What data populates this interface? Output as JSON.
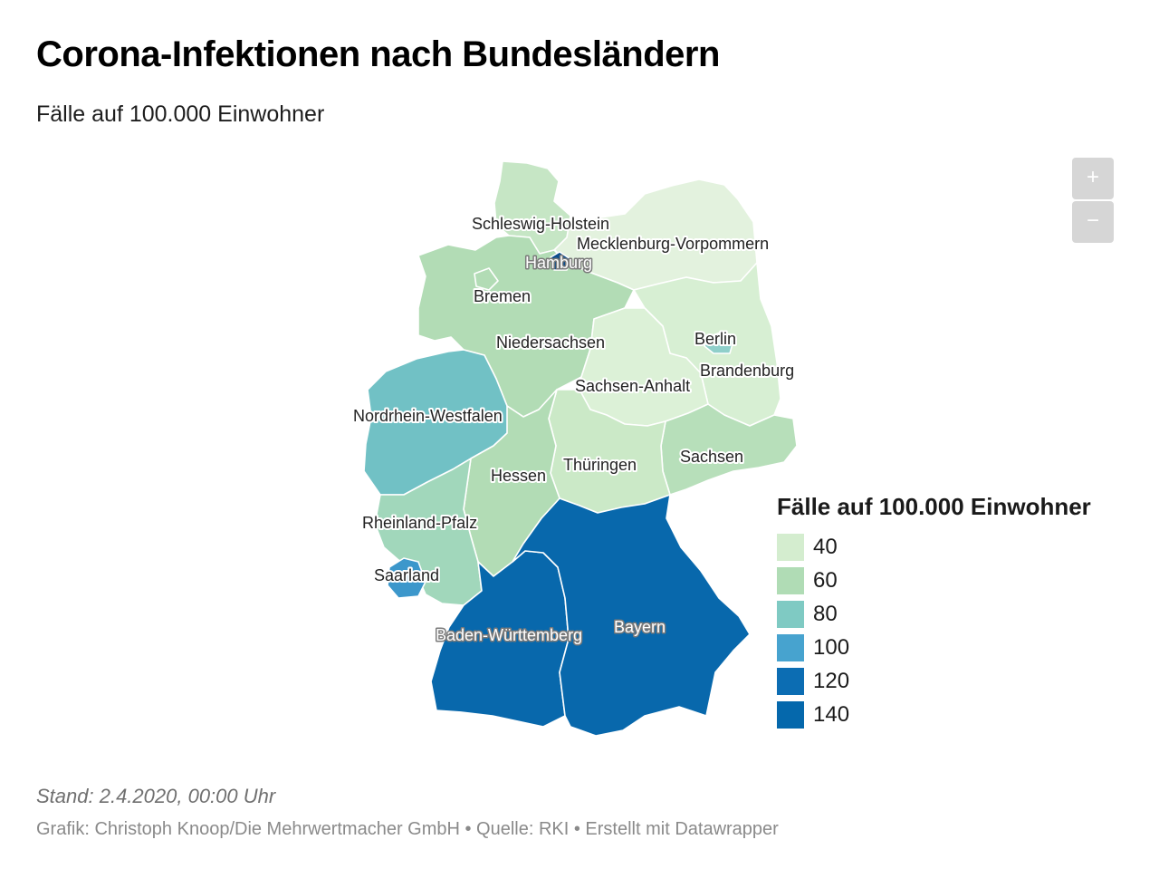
{
  "title": "Corona-Infektionen nach Bundesländern",
  "subtitle": "Fälle auf 100.000 Einwohner",
  "zoom": {
    "in_label": "+",
    "out_label": "−"
  },
  "legend": {
    "title": "Fälle auf 100.000 Einwohner",
    "items": [
      {
        "value": "40",
        "color": "#d4edcf"
      },
      {
        "value": "60",
        "color": "#b0dcb5"
      },
      {
        "value": "80",
        "color": "#7fcac3"
      },
      {
        "value": "100",
        "color": "#47a3cf"
      },
      {
        "value": "120",
        "color": "#0c6db3"
      },
      {
        "value": "140",
        "color": "#0568ac"
      }
    ]
  },
  "map": {
    "states": [
      {
        "name": "Schleswig-Holstein",
        "color": "#c6e6c5"
      },
      {
        "name": "Mecklenburg-Vorpommern",
        "color": "#e3f2de"
      },
      {
        "name": "Hamburg",
        "color": "#0b4d8c"
      },
      {
        "name": "Bremen",
        "color": "#b2dcb5"
      },
      {
        "name": "Niedersachsen",
        "color": "#b2dcb5"
      },
      {
        "name": "Berlin",
        "color": "#8fcfca"
      },
      {
        "name": "Brandenburg",
        "color": "#d7efd3"
      },
      {
        "name": "Sachsen-Anhalt",
        "color": "#dcf1d7"
      },
      {
        "name": "Nordrhein-Westfalen",
        "color": "#71c1c5"
      },
      {
        "name": "Hessen",
        "color": "#b2dcb5"
      },
      {
        "name": "Thüringen",
        "color": "#cbe9c7"
      },
      {
        "name": "Sachsen",
        "color": "#b7dfba"
      },
      {
        "name": "Rheinland-Pfalz",
        "color": "#a1d7bb"
      },
      {
        "name": "Saarland",
        "color": "#3c97cb"
      },
      {
        "name": "Baden-Württemberg",
        "color": "#0868ac"
      },
      {
        "name": "Bayern",
        "color": "#0868ac"
      }
    ]
  },
  "footer": {
    "date": "Stand: 2.4.2020, 00:00 Uhr",
    "credit": "Grafik: Christoph Knoop/Die Mehrwertmacher GmbH • Quelle: RKI • Erstellt mit Datawrapper"
  }
}
